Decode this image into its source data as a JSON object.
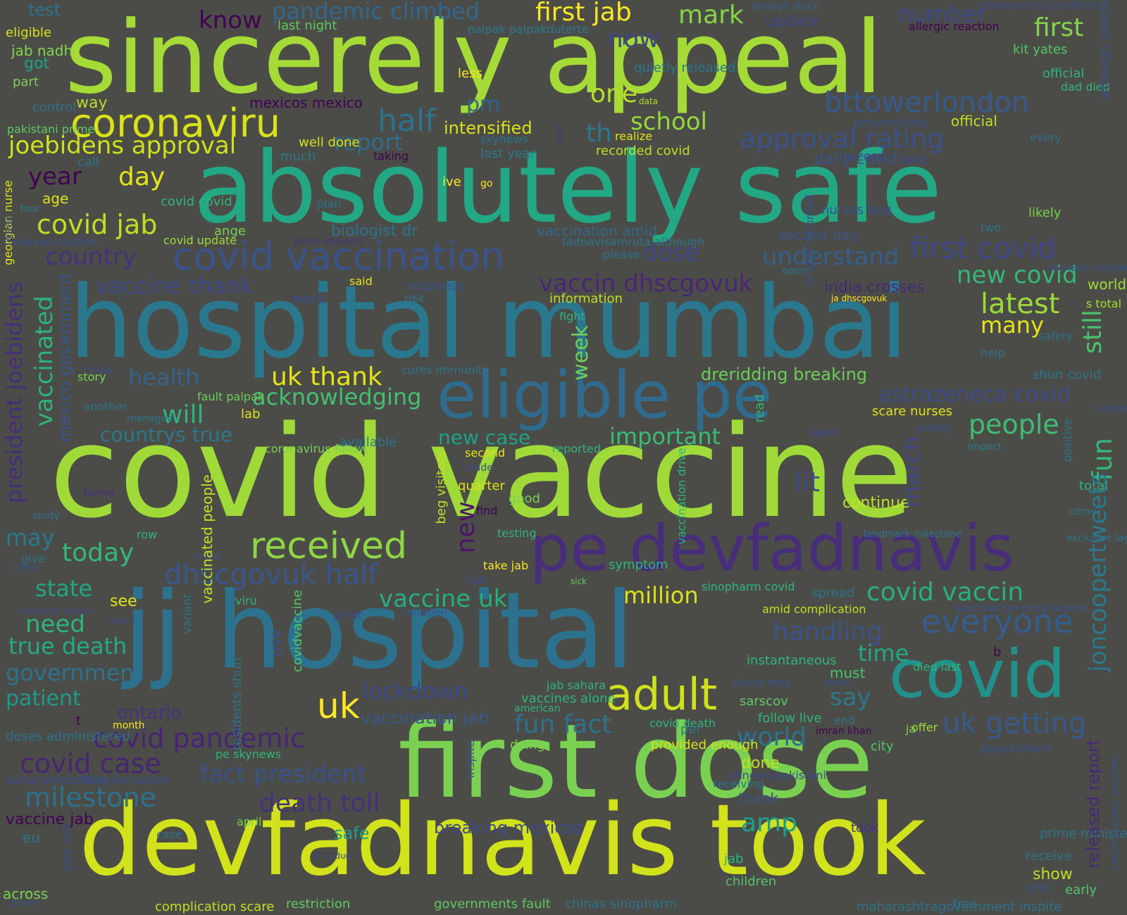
{
  "background": "#4b4c47",
  "palette": [
    "#d0e11c",
    "#a0da39",
    "#4ac16d",
    "#1fa187",
    "#277f8e",
    "#365c8d",
    "#46327e",
    "#440154",
    "#fde725"
  ],
  "words": [
    {
      "text": "sincerely appeal",
      "color": "#a5db36"
    },
    {
      "text": "absolutely safe",
      "color": "#22a884"
    },
    {
      "text": "hospital mumbai",
      "color": "#2a788e"
    },
    {
      "text": "covid vaccine",
      "color": "#a0da39"
    },
    {
      "text": "eligible pe",
      "color": "#2f6b8e"
    },
    {
      "text": "jj hospital",
      "color": "#2c728e"
    },
    {
      "text": "first dose",
      "color": "#7ad151"
    },
    {
      "text": "devfadnavis took",
      "color": "#d2e21b"
    },
    {
      "text": "pe devfadnavis",
      "color": "#472d7b"
    },
    {
      "text": "coronaviru",
      "color": "#d8e219"
    },
    {
      "text": "covid vaccination",
      "color": "#3b528b"
    },
    {
      "text": "covid",
      "color": "#21918c"
    },
    {
      "text": "adult",
      "color": "#d0e11c"
    },
    {
      "text": "received",
      "color": "#8fd744"
    },
    {
      "text": "first jab",
      "color": "#fde725"
    },
    {
      "text": "mark",
      "color": "#86d549"
    },
    {
      "text": "know",
      "color": "#440154"
    },
    {
      "text": "pandemic climbed",
      "color": "#31688e"
    },
    {
      "text": "number",
      "color": "#3e4989"
    },
    {
      "text": "first",
      "color": "#84d44b"
    },
    {
      "text": "one",
      "color": "#b5de2b"
    },
    {
      "text": "now",
      "color": "#414487"
    },
    {
      "text": "joebidens approval",
      "color": "#d0e11c"
    },
    {
      "text": "half",
      "color": "#2c728e"
    },
    {
      "text": "report",
      "color": "#2f6c8e"
    },
    {
      "text": "pm",
      "color": "#33638d"
    },
    {
      "text": "intensified",
      "color": "#d8e219"
    },
    {
      "text": "school",
      "color": "#95d840"
    },
    {
      "text": "th",
      "color": "#2a788e"
    },
    {
      "text": "bttowerlondon",
      "color": "#38598c"
    },
    {
      "text": "approval rating",
      "color": "#3b528b"
    },
    {
      "text": "year",
      "color": "#440154"
    },
    {
      "text": "day",
      "color": "#e5e419"
    },
    {
      "text": "covid jab",
      "color": "#bddf26"
    },
    {
      "text": "country",
      "color": "#46307e"
    },
    {
      "text": "vaccine thank",
      "color": "#3e4989"
    },
    {
      "text": "dose",
      "color": "#3e4989"
    },
    {
      "text": "understand",
      "color": "#355f8d"
    },
    {
      "text": "first covid",
      "color": "#3f4788"
    },
    {
      "text": "new covid",
      "color": "#35b779"
    },
    {
      "text": "latest",
      "color": "#9bd93c"
    },
    {
      "text": "many",
      "color": "#e5e419"
    },
    {
      "text": "vaccin dhscgovuk",
      "color": "#482677"
    },
    {
      "text": "uk thank",
      "color": "#e7e419"
    },
    {
      "text": "acknowledging",
      "color": "#44bf70"
    },
    {
      "text": "will",
      "color": "#2fb47c"
    },
    {
      "text": "health",
      "color": "#33638d"
    },
    {
      "text": "countrys true",
      "color": "#2a788e"
    },
    {
      "text": "dreridding breaking",
      "color": "#6ccd5a"
    },
    {
      "text": "astrazeneca covid",
      "color": "#3e4c8a"
    },
    {
      "text": "people",
      "color": "#3fbc73"
    },
    {
      "text": "important",
      "color": "#3bbb75"
    },
    {
      "text": "new case",
      "color": "#1fa187"
    },
    {
      "text": "lit",
      "color": "#3e4989"
    },
    {
      "text": "today",
      "color": "#35b779"
    },
    {
      "text": "may",
      "color": "#2a788e"
    },
    {
      "text": "dhscgovuk half",
      "color": "#39568c"
    },
    {
      "text": "vaccine uk",
      "color": "#27ad81"
    },
    {
      "text": "million",
      "color": "#dde318"
    },
    {
      "text": "covid vaccin",
      "color": "#29af7f"
    },
    {
      "text": "everyone",
      "color": "#365c8d"
    },
    {
      "text": "handling",
      "color": "#3b528b"
    },
    {
      "text": "time",
      "color": "#22a884"
    },
    {
      "text": "state",
      "color": "#21a585"
    },
    {
      "text": "need",
      "color": "#2fb47c"
    },
    {
      "text": "true death",
      "color": "#25ab82"
    },
    {
      "text": "government",
      "color": "#2c728e"
    },
    {
      "text": "patient",
      "color": "#1f998a"
    },
    {
      "text": "uk",
      "color": "#fde725"
    },
    {
      "text": "lockdown",
      "color": "#3e4989"
    },
    {
      "text": "vaccination jab",
      "color": "#38588c"
    },
    {
      "text": "covid pandemic",
      "color": "#482475"
    },
    {
      "text": "covid case",
      "color": "#482475"
    },
    {
      "text": "fact president",
      "color": "#3b528b"
    },
    {
      "text": "milestone",
      "color": "#2c718e"
    },
    {
      "text": "death toll",
      "color": "#472f7d"
    },
    {
      "text": "fun fact",
      "color": "#2c728e"
    },
    {
      "text": "world",
      "color": "#2c728e"
    },
    {
      "text": "say",
      "color": "#2a788e"
    },
    {
      "text": "uk getting",
      "color": "#38598c"
    },
    {
      "text": "amp",
      "color": "#1f9e89"
    },
    {
      "text": "vaccine jab",
      "color": "#440154"
    },
    {
      "text": "breaking mexicos",
      "color": "#3e4989"
    },
    {
      "text": "safe",
      "color": "#1f9e89"
    },
    {
      "text": "president joebidens",
      "color": "#472d7b"
    },
    {
      "text": "vaccinated",
      "color": "#2db27d"
    },
    {
      "text": "mexico government",
      "color": "#39558c"
    },
    {
      "text": "week",
      "color": "#6ece58"
    },
    {
      "text": "new",
      "color": "#481668"
    },
    {
      "text": "march",
      "color": "#3f4788"
    },
    {
      "text": "still",
      "color": "#4ac16d"
    },
    {
      "text": "fun",
      "color": "#35b779"
    },
    {
      "text": "joncoopertweets",
      "color": "#2a788e"
    },
    {
      "text": "released report",
      "color": "#482878"
    },
    {
      "text": "test",
      "color": "#482475"
    },
    {
      "text": "eligible",
      "color": "#2c728e"
    },
    {
      "text": "jab nadh",
      "color": "#d8e219"
    },
    {
      "text": "got",
      "color": "#84d44b"
    },
    {
      "text": "part",
      "color": "#1fa088"
    },
    {
      "text": "control",
      "color": "#7ad151"
    },
    {
      "text": "way",
      "color": "#2d708e"
    },
    {
      "text": "mexicos mexico",
      "color": "#b5de2b"
    },
    {
      "text": "last night",
      "color": "#440154"
    },
    {
      "text": "palpak palpakduterte",
      "color": "#5ec962"
    },
    {
      "text": "update",
      "color": "#2a788e"
    },
    {
      "text": "enough stock",
      "color": "#3f4788"
    },
    {
      "text": "coronavirus pandemic",
      "color": "#355f8d"
    },
    {
      "text": "allergic reaction",
      "color": "#3e4a89"
    },
    {
      "text": "kit yates",
      "color": "#440154"
    },
    {
      "text": "dad died",
      "color": "#52c569"
    },
    {
      "text": "every",
      "color": "#2fb47c"
    },
    {
      "text": "official",
      "color": "#2f6c8e"
    },
    {
      "text": "although centre",
      "color": "#c2df23"
    },
    {
      "text": "quietly released",
      "color": "#3b528b"
    },
    {
      "text": "less",
      "color": "#2a788e"
    },
    {
      "text": "data",
      "color": "#fde725"
    },
    {
      "text": "skynews",
      "color": "#b5de2b"
    },
    {
      "text": "last year",
      "color": "#2c728e"
    },
    {
      "text": "call",
      "color": "#2a788e"
    },
    {
      "text": "realize",
      "color": "#2c728e"
    },
    {
      "text": "recorded covid",
      "color": "#e2e418"
    },
    {
      "text": "preventives",
      "color": "#bddf26"
    },
    {
      "text": "pakistani prime",
      "color": "#3b528b"
    },
    {
      "text": "well done",
      "color": "#5ec962"
    },
    {
      "text": "much",
      "color": "#d8e219"
    },
    {
      "text": "taking",
      "color": "#2a788e"
    },
    {
      "text": "record",
      "color": "#440154"
    },
    {
      "text": "daily covid",
      "color": "#3e4989"
    },
    {
      "text": "take",
      "color": "#3b528b"
    },
    {
      "text": "ive",
      "color": "#3e4989"
    },
    {
      "text": "go",
      "color": "#fde725"
    },
    {
      "text": "age",
      "color": "#fde725"
    },
    {
      "text": "covid covid",
      "color": "#dde318"
    },
    {
      "text": "plan",
      "color": "#2fb47c"
    },
    {
      "text": "four",
      "color": "#2c728e"
    },
    {
      "text": "nurses beg",
      "color": "#2a788e"
    },
    {
      "text": "likely",
      "color": "#3b528b"
    },
    {
      "text": "two",
      "color": "#7ad151"
    },
    {
      "text": "ange",
      "color": "#2c728e"
    },
    {
      "text": "covid update",
      "color": "#7ad151"
    },
    {
      "text": "biologist dr",
      "color": "#9fda3a"
    },
    {
      "text": "covidvaccination",
      "color": "#2c728e"
    },
    {
      "text": "yates explains",
      "color": "#3b528b"
    },
    {
      "text": "vaccination amid",
      "color": "#46327e"
    },
    {
      "text": "fadnavisamruta although",
      "color": "#31688e"
    },
    {
      "text": "second day",
      "color": "#2c728e"
    },
    {
      "text": "please",
      "color": "#3b528b"
    },
    {
      "text": "open",
      "color": "#2c728e"
    },
    {
      "text": "skynews mathematical",
      "color": "#2c728e"
    },
    {
      "text": "world s",
      "color": "#3b528b"
    },
    {
      "text": "said",
      "color": "#a0da39"
    },
    {
      "text": "response",
      "color": "#e5e419"
    },
    {
      "text": "work",
      "color": "#3b528b"
    },
    {
      "text": "risk",
      "color": "#3e4989"
    },
    {
      "text": "information",
      "color": "#2c728e"
    },
    {
      "text": "india crosses",
      "color": "#c2df23"
    },
    {
      "text": "ja dhscgovuk",
      "color": "#482878"
    },
    {
      "text": "s total",
      "color": "#fde725"
    },
    {
      "text": "fight",
      "color": "#a5db36"
    },
    {
      "text": "safety",
      "color": "#2fb47c"
    },
    {
      "text": "help",
      "color": "#2c728e"
    },
    {
      "text": "shun covid",
      "color": "#2c728e"
    },
    {
      "text": "story",
      "color": "#2c728e"
    },
    {
      "text": "china",
      "color": "#7ad151"
    },
    {
      "text": "fault palpak",
      "color": "#3e4989"
    },
    {
      "text": "another",
      "color": "#6ccd5a"
    },
    {
      "text": "managed",
      "color": "#2c728e"
    },
    {
      "text": "lab",
      "color": "#2c728e"
    },
    {
      "text": "cures immunity",
      "color": "#dde318"
    },
    {
      "text": "scare nurses",
      "color": "#2c728e"
    },
    {
      "text": "hundred days",
      "color": "#dde318"
    },
    {
      "text": "seen",
      "color": "#3b528b"
    },
    {
      "text": "getting",
      "color": "#3e4989"
    },
    {
      "text": "impact",
      "color": "#3b528b"
    },
    {
      "text": "coronavirus follow",
      "color": "#2a788e"
    },
    {
      "text": "available",
      "color": "#7ad151"
    },
    {
      "text": "second",
      "color": "#2c728e"
    },
    {
      "text": "reported",
      "color": "#e5e419"
    },
    {
      "text": "made",
      "color": "#2fb47c"
    },
    {
      "text": "quarter",
      "color": "#3e4989"
    },
    {
      "text": "good",
      "color": "#dde318"
    },
    {
      "text": "find",
      "color": "#7ad151"
    },
    {
      "text": "continue",
      "color": "#440154"
    },
    {
      "text": "total",
      "color": "#c2df23"
    },
    {
      "text": "come",
      "color": "#2fb47c"
    },
    {
      "text": "home",
      "color": "#2c728e"
    },
    {
      "text": "study",
      "color": "#472f7d"
    },
    {
      "text": "row",
      "color": "#2c728e"
    },
    {
      "text": "testing",
      "color": "#2fb47c"
    },
    {
      "text": "landmark milestone",
      "color": "#2fb47c"
    },
    {
      "text": "exclusive lagos",
      "color": "#2c728e"
    },
    {
      "text": "give",
      "color": "#2c728e"
    },
    {
      "text": "make",
      "color": "#2c728e"
    },
    {
      "text": "take jab",
      "color": "#3b528b"
    },
    {
      "text": "symptom",
      "color": "#fde725"
    },
    {
      "text": "live",
      "color": "#2fb47c"
    },
    {
      "text": "sick",
      "color": "#3e4989"
    },
    {
      "text": "check",
      "color": "#5ec962"
    },
    {
      "text": "sinopharm covid",
      "color": "#3b528b"
    },
    {
      "text": "spread",
      "color": "#2fb47c"
    },
    {
      "text": "see",
      "color": "#2c728e"
    },
    {
      "text": "viru",
      "color": "#dde318"
    },
    {
      "text": "great",
      "color": "#2fb47c"
    },
    {
      "text": "infection",
      "color": "#3e4989"
    },
    {
      "text": "amid complication",
      "color": "#3b528b"
    },
    {
      "text": "vaccination programme",
      "color": "#c2df23"
    },
    {
      "text": "minister imran",
      "color": "#3b528b"
    },
    {
      "text": "don t",
      "color": "#3e4989"
    },
    {
      "text": "b",
      "color": "#3e4989"
    },
    {
      "text": "instantaneous",
      "color": "#440154"
    },
    {
      "text": "died last",
      "color": "#2fb47c"
    },
    {
      "text": "must",
      "color": "#2fb47c"
    },
    {
      "text": "even",
      "color": "#4ac16d"
    },
    {
      "text": "alone may",
      "color": "#3b528b"
    },
    {
      "text": "jab sahara",
      "color": "#3b528b"
    },
    {
      "text": "vaccines alone",
      "color": "#2fb47c"
    },
    {
      "text": "american",
      "color": "#2fb47c"
    },
    {
      "text": "sarscov",
      "color": "#2fb47c"
    },
    {
      "text": "follow live",
      "color": "#5ec962"
    },
    {
      "text": "end",
      "color": "#2fb47c"
    },
    {
      "text": "imran khan",
      "color": "#2c728e"
    },
    {
      "text": "offer",
      "color": "#440154"
    },
    {
      "text": "ja",
      "color": "#a0da39"
    },
    {
      "text": "t",
      "color": "#7ad151"
    },
    {
      "text": "month",
      "color": "#440154"
    },
    {
      "text": "ontario",
      "color": "#fde725"
    },
    {
      "text": "covid death",
      "color": "#46307e"
    },
    {
      "text": "per",
      "color": "#2fb47c"
    },
    {
      "text": "dying",
      "color": "#2c728e"
    },
    {
      "text": "provided enough",
      "color": "#7ad151"
    },
    {
      "text": "city",
      "color": "#d8e219"
    },
    {
      "text": "appointment",
      "color": "#52c569"
    },
    {
      "text": "doses administered",
      "color": "#3b528b"
    },
    {
      "text": "pe skynews",
      "color": "#2c728e"
    },
    {
      "text": "saharareporters exclusive",
      "color": "#2fb47c"
    },
    {
      "text": "thing",
      "color": "#3e4989"
    },
    {
      "text": "xhnews pakistani",
      "color": "#3b528b"
    },
    {
      "text": "receiving",
      "color": "#3e4989"
    },
    {
      "text": "done",
      "color": "#2c728e"
    },
    {
      "text": "thank",
      "color": "#c2df23"
    },
    {
      "text": "april",
      "color": "#3b528b"
    },
    {
      "text": "eu",
      "color": "#7ad151"
    },
    {
      "text": "case",
      "color": "#2c728e"
    },
    {
      "text": "took",
      "color": "#2c728e"
    },
    {
      "text": "prime minister",
      "color": "#46327e"
    },
    {
      "text": "receive",
      "color": "#2c728e"
    },
    {
      "text": "show",
      "color": "#2c728e"
    },
    {
      "text": "shot",
      "color": "#c2df23"
    },
    {
      "text": "early",
      "color": "#3b528b"
    },
    {
      "text": "jab",
      "color": "#52c569"
    },
    {
      "text": "children",
      "color": "#2fb47c"
    },
    {
      "text": "dr kitdue",
      "color": "#52c569"
    },
    {
      "text": "across",
      "color": "#3e4989"
    },
    {
      "text": "given",
      "color": "#7ad151"
    },
    {
      "text": "complication scare",
      "color": "#3b528b"
    },
    {
      "text": "restriction",
      "color": "#c2df23"
    },
    {
      "text": "governments fault",
      "color": "#5ec962"
    },
    {
      "text": "chinas sinopharm",
      "color": "#5ec962"
    },
    {
      "text": "maharashtragovernment inspite",
      "color": "#2c728e"
    },
    {
      "text": "free",
      "color": "#2c728e"
    },
    {
      "text": "georgian nurse",
      "color": "#2c728e"
    },
    {
      "text": "keep",
      "color": "#dde318"
    },
    {
      "text": "rate",
      "color": "#3b528b"
    },
    {
      "text": "brazils recorded",
      "color": "#46327e"
    },
    {
      "text": "read",
      "color": "#3b528b"
    },
    {
      "text": "vaccination drive",
      "color": "#2fb47c"
    },
    {
      "text": "beg visitors",
      "color": "#2fb47c"
    },
    {
      "text": "vaccinated people",
      "color": "#c2df23"
    },
    {
      "text": "variant",
      "color": "#c2df23"
    },
    {
      "text": "residents shun",
      "color": "#2c728e"
    },
    {
      "text": "use",
      "color": "#2c728e"
    },
    {
      "text": "covidvaccine",
      "color": "#3b528b"
    },
    {
      "text": "give half",
      "color": "#52c569"
    },
    {
      "text": "inspite",
      "color": "#3e4989"
    },
    {
      "text": "positive",
      "color": "#3b528b"
    },
    {
      "text": "sailorrooscout vaccines",
      "color": "#2c728e"
    },
    {
      "text": "mathematical biologist",
      "color": "#3b528b"
    },
    {
      "text": "c",
      "color": "#dde318"
    },
    {
      "text": "u",
      "color": "#fde725"
    }
  ]
}
